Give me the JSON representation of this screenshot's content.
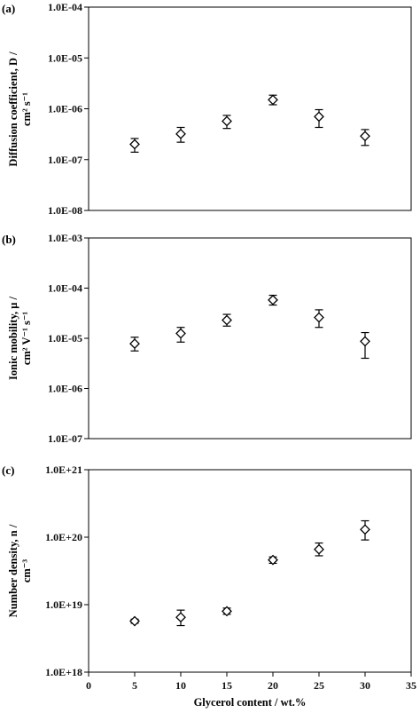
{
  "chart_data": [
    {
      "type": "scatter",
      "panel_label": "(a)",
      "title": "",
      "ylabel_line1": "Diffusion coefficient, D /",
      "ylabel_line2": "cm² s⁻¹",
      "xlabel": "",
      "yscale": "log",
      "ylim": [
        1e-08,
        0.0001
      ],
      "ytick_values": [
        1e-08,
        1e-07,
        1e-06,
        1e-05,
        0.0001
      ],
      "ytick_labels": [
        "1.0E-08",
        "1.0E-07",
        "1.0E-06",
        "1.0E-05",
        "1.0E-04"
      ],
      "xlim": [
        0,
        35
      ],
      "grid": false,
      "marker": "diamond-open",
      "series": [
        {
          "x": [
            5,
            10,
            15,
            20,
            25,
            30
          ],
          "y": [
            2e-07,
            3.2e-07,
            5.7e-07,
            1.5e-06,
            7e-07,
            2.9e-07
          ],
          "err_low": [
            1.4e-07,
            2.2e-07,
            4.1e-07,
            1.2e-06,
            4.3e-07,
            1.9e-07
          ],
          "err_high": [
            2.6e-07,
            4.3e-07,
            7.4e-07,
            1.85e-06,
            9.6e-07,
            3.9e-07
          ]
        }
      ]
    },
    {
      "type": "scatter",
      "panel_label": "(b)",
      "title": "",
      "ylabel_line1": "Ionic mobility, μ /",
      "ylabel_line2": "cm² V⁻¹ s⁻¹",
      "xlabel": "",
      "yscale": "log",
      "ylim": [
        1e-07,
        0.001
      ],
      "ytick_values": [
        1e-07,
        1e-06,
        1e-05,
        0.0001,
        0.001
      ],
      "ytick_labels": [
        "1.0E-07",
        "1.0E-06",
        "1.0E-05",
        "1.0E-04",
        "1.0E-03"
      ],
      "xlim": [
        0,
        35
      ],
      "grid": false,
      "marker": "diamond-open",
      "series": [
        {
          "x": [
            5,
            10,
            15,
            20,
            25,
            30
          ],
          "y": [
            7.8e-06,
            1.25e-05,
            2.3e-05,
            5.8e-05,
            2.6e-05,
            8.7e-06
          ],
          "err_low": [
            5.6e-06,
            8.4e-06,
            1.75e-05,
            4.6e-05,
            1.65e-05,
            4e-06
          ],
          "err_high": [
            1.05e-05,
            1.65e-05,
            3e-05,
            7.2e-05,
            3.7e-05,
            1.3e-05
          ]
        }
      ]
    },
    {
      "type": "scatter",
      "panel_label": "(c)",
      "title": "",
      "ylabel_line1": "Number density, n /",
      "ylabel_line2": "cm⁻³",
      "xlabel": "Glycerol content / wt.%",
      "yscale": "log",
      "ylim": [
        1e+18,
        1e+21
      ],
      "ytick_values": [
        1e+18,
        1e+19,
        1e+20,
        1e+21
      ],
      "ytick_labels": [
        "1.0E+18",
        "1.0E+19",
        "1.0E+20",
        "1.0E+21"
      ],
      "xlim": [
        0,
        35
      ],
      "xtick_values": [
        0,
        5,
        10,
        15,
        20,
        25,
        30,
        35
      ],
      "xtick_labels": [
        "0",
        "5",
        "10",
        "15",
        "20",
        "25",
        "30",
        "35"
      ],
      "grid": false,
      "marker": "diamond-open",
      "series": [
        {
          "x": [
            5,
            10,
            15,
            20,
            25,
            30
          ],
          "y": [
            5.7e+18,
            6.5e+18,
            8e+18,
            4.6e+19,
            6.6e+19,
            1.3e+20
          ],
          "err_low": [
            5.3e+18,
            4.9e+18,
            7.2e+18,
            4.1e+19,
            5.3e+19,
            9.1e+19
          ],
          "err_high": [
            6.1e+18,
            8.3e+18,
            8.9e+18,
            5.1e+19,
            8.2e+19,
            1.75e+20
          ]
        }
      ]
    }
  ]
}
